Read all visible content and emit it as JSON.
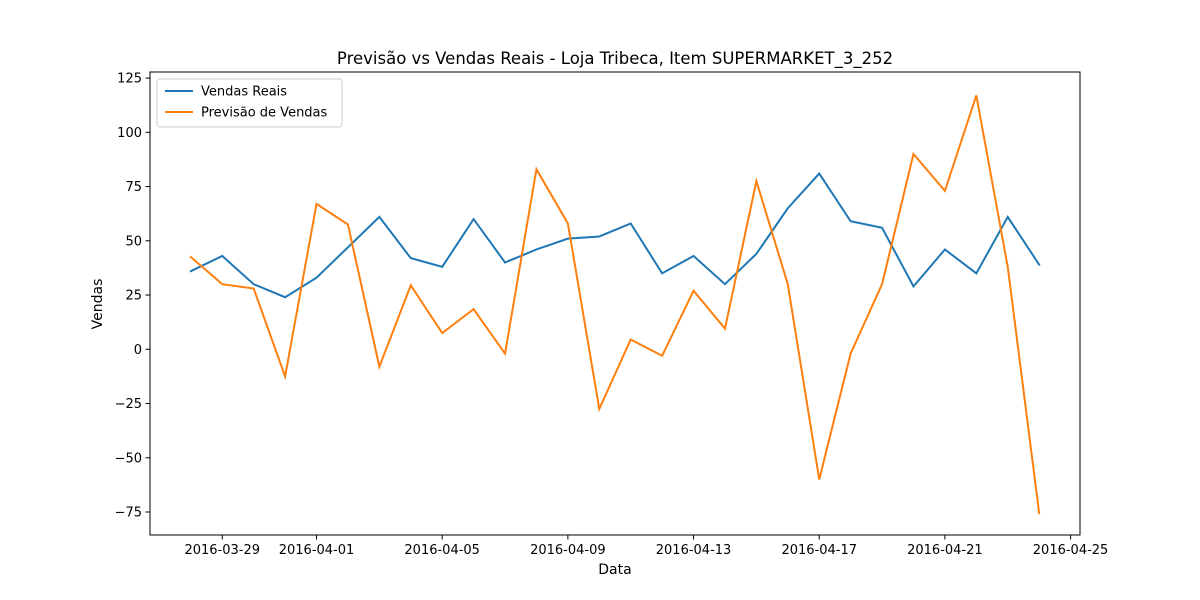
{
  "chart_data": {
    "type": "line",
    "title": "Previsão vs Vendas Reais - Loja Tribeca, Item SUPERMARKET_3_252",
    "xlabel": "Data",
    "ylabel": "Vendas",
    "x_axis_type": "date",
    "xlim": [
      "2016-03-26T16:48",
      "2016-04-25T07:12"
    ],
    "ylim": [
      -85.6,
      127.8
    ],
    "xticks": [
      "2016-03-29",
      "2016-04-01",
      "2016-04-05",
      "2016-04-09",
      "2016-04-13",
      "2016-04-17",
      "2016-04-21",
      "2016-04-25"
    ],
    "yticks": [
      -75,
      -50,
      -25,
      0,
      25,
      50,
      75,
      100,
      125
    ],
    "grid": false,
    "legend_position": "upper left",
    "x": [
      "2016-03-28",
      "2016-03-29",
      "2016-03-30",
      "2016-03-31",
      "2016-04-01",
      "2016-04-02",
      "2016-04-03",
      "2016-04-04",
      "2016-04-05",
      "2016-04-06",
      "2016-04-07",
      "2016-04-08",
      "2016-04-09",
      "2016-04-10",
      "2016-04-11",
      "2016-04-12",
      "2016-04-13",
      "2016-04-14",
      "2016-04-15",
      "2016-04-16",
      "2016-04-17",
      "2016-04-18",
      "2016-04-19",
      "2016-04-20",
      "2016-04-21",
      "2016-04-22",
      "2016-04-23",
      "2016-04-24"
    ],
    "series": [
      {
        "name": "Vendas Reais",
        "color": "#1f77b4",
        "values": [
          36,
          43,
          30,
          24,
          33,
          47,
          61,
          42,
          38,
          60,
          40,
          46,
          51,
          52,
          58,
          35,
          43,
          30,
          44,
          65,
          81,
          59,
          56,
          29,
          46,
          35,
          61,
          39
        ]
      },
      {
        "name": "Previsão de Vendas",
        "color": "#ff7f0e",
        "values": [
          42.5,
          30,
          28,
          -12.5,
          67,
          57.5,
          -8,
          29.5,
          7.5,
          18.5,
          -2,
          83,
          58,
          -27.5,
          4.5,
          -3,
          27,
          9.5,
          77.5,
          30,
          -60,
          -2,
          30,
          90,
          73,
          117,
          38,
          -75.5
        ]
      }
    ]
  }
}
